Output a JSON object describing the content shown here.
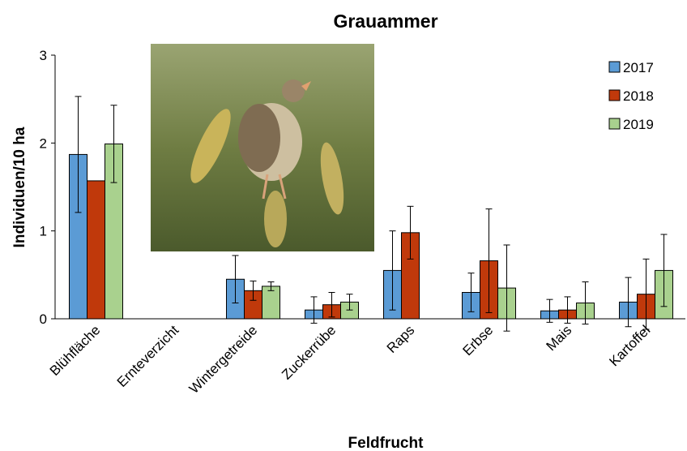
{
  "chart_data": {
    "type": "bar",
    "title": "Grauammer",
    "x_label": "Feldfrucht",
    "y_label": "Individuen/10 ha",
    "categories": [
      "Blühfläche",
      "Ernteverzicht",
      "Wintergetreide",
      "Zuckerrübe",
      "Raps",
      "Erbse",
      "Mais",
      "Kartoffel"
    ],
    "series": [
      {
        "name": "2017",
        "color": "#5b9bd5",
        "values": [
          1.87,
          null,
          0.45,
          0.1,
          0.55,
          0.3,
          0.09,
          0.19
        ],
        "errors": [
          0.66,
          null,
          0.27,
          0.15,
          0.45,
          0.22,
          0.13,
          0.28
        ]
      },
      {
        "name": "2018",
        "color": "#c0390b",
        "values": [
          1.57,
          null,
          0.32,
          0.16,
          0.98,
          0.66,
          0.1,
          0.28
        ],
        "errors": [
          null,
          null,
          0.11,
          0.14,
          0.3,
          0.59,
          0.15,
          0.4
        ]
      },
      {
        "name": "2019",
        "color": "#a9d18e",
        "values": [
          1.99,
          null,
          0.37,
          0.19,
          null,
          0.35,
          0.18,
          0.55
        ],
        "errors": [
          0.44,
          null,
          0.05,
          0.09,
          null,
          0.49,
          0.24,
          0.41
        ]
      }
    ],
    "ylim": [
      0,
      3
    ],
    "yticks": [
      0,
      1,
      2,
      3
    ],
    "grid": false,
    "legend": "upper right"
  }
}
